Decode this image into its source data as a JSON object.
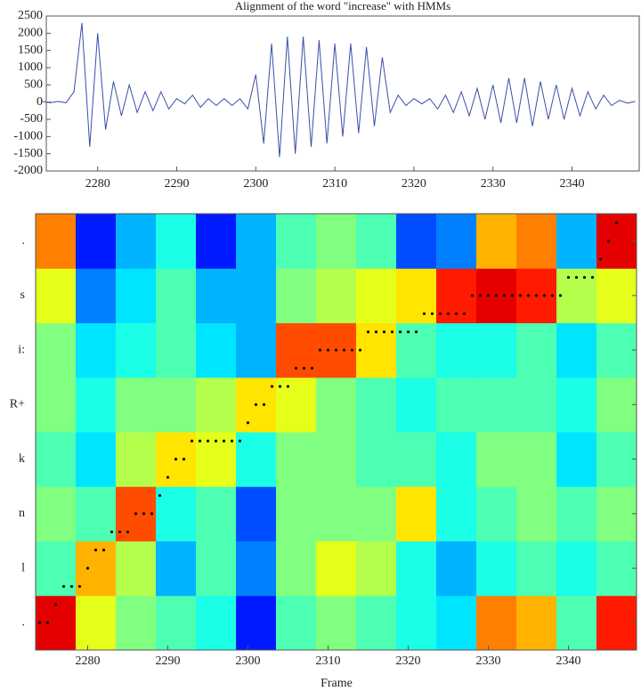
{
  "chart_data": [
    {
      "type": "line",
      "title": "Alignment of the word \"increase\" with HMMs",
      "color": "#3a4fa8",
      "x": [
        2273,
        2274,
        2275,
        2276,
        2277,
        2278,
        2279,
        2280,
        2281,
        2282,
        2283,
        2284,
        2285,
        2286,
        2287,
        2288,
        2289,
        2290,
        2291,
        2292,
        2293,
        2294,
        2295,
        2296,
        2297,
        2298,
        2299,
        2300,
        2301,
        2302,
        2303,
        2304,
        2305,
        2306,
        2307,
        2308,
        2309,
        2310,
        2311,
        2312,
        2313,
        2314,
        2315,
        2316,
        2317,
        2318,
        2319,
        2320,
        2321,
        2322,
        2323,
        2324,
        2325,
        2326,
        2327,
        2328,
        2329,
        2330,
        2331,
        2332,
        2333,
        2334,
        2335,
        2336,
        2337,
        2338,
        2339,
        2340,
        2341,
        2342,
        2343,
        2344,
        2345,
        2346,
        2347,
        2348
      ],
      "values": [
        20,
        -20,
        20,
        -20,
        300,
        2300,
        -1300,
        2000,
        -800,
        600,
        -400,
        500,
        -300,
        300,
        -250,
        300,
        -200,
        100,
        -50,
        200,
        -150,
        100,
        -100,
        100,
        -100,
        100,
        -200,
        800,
        -1200,
        1700,
        -1600,
        1900,
        -1500,
        1900,
        -1300,
        1800,
        -1200,
        1700,
        -1000,
        1700,
        -900,
        1600,
        -700,
        1300,
        -300,
        200,
        -100,
        100,
        -50,
        100,
        -200,
        200,
        -300,
        300,
        -400,
        400,
        -500,
        500,
        -600,
        700,
        -600,
        700,
        -700,
        600,
        -500,
        500,
        -500,
        400,
        -400,
        300,
        -200,
        200,
        -100,
        50,
        -30,
        20
      ],
      "xlim": [
        2273.5,
        2348.5
      ],
      "xticks": [
        2280,
        2290,
        2300,
        2310,
        2320,
        2330,
        2340
      ],
      "ylim": [
        -2000,
        2500
      ],
      "yticks": [
        -2000,
        -1500,
        -1000,
        -500,
        0,
        500,
        1000,
        1500,
        2000,
        2500
      ]
    },
    {
      "type": "heatmap",
      "x_label": "Frame",
      "xlim": [
        2273.5,
        2348.5
      ],
      "xticks": [
        2280,
        2290,
        2300,
        2310,
        2320,
        2330,
        2340
      ],
      "ylim": [
        0,
        24
      ],
      "yticks": [
        {
          "value": 1.5,
          "label": "."
        },
        {
          "value": 4.5,
          "label": "l"
        },
        {
          "value": 7.5,
          "label": "n"
        },
        {
          "value": 10.5,
          "label": "k"
        },
        {
          "value": 13.5,
          "label": "R+"
        },
        {
          "value": 16.5,
          "label": "i:"
        },
        {
          "value": 19.5,
          "label": "s"
        },
        {
          "value": 22.5,
          "label": "."
        }
      ],
      "matrix": [
        [
          0.9,
          0.6,
          0.5,
          0.45,
          0.4,
          0.15,
          0.45,
          0.5,
          0.45,
          0.4,
          0.35,
          0.75,
          0.7,
          0.45,
          0.85
        ],
        [
          0.45,
          0.7,
          0.55,
          0.3,
          0.45,
          0.25,
          0.5,
          0.6,
          0.55,
          0.4,
          0.3,
          0.4,
          0.45,
          0.4,
          0.45
        ],
        [
          0.5,
          0.45,
          0.8,
          0.4,
          0.45,
          0.2,
          0.5,
          0.5,
          0.5,
          0.65,
          0.4,
          0.45,
          0.5,
          0.45,
          0.5
        ],
        [
          0.45,
          0.35,
          0.55,
          0.65,
          0.6,
          0.4,
          0.5,
          0.5,
          0.45,
          0.45,
          0.4,
          0.5,
          0.5,
          0.35,
          0.45
        ],
        [
          0.5,
          0.4,
          0.5,
          0.5,
          0.55,
          0.65,
          0.6,
          0.5,
          0.45,
          0.4,
          0.45,
          0.45,
          0.45,
          0.4,
          0.5
        ],
        [
          0.5,
          0.35,
          0.4,
          0.45,
          0.35,
          0.3,
          0.8,
          0.8,
          0.65,
          0.45,
          0.4,
          0.4,
          0.45,
          0.35,
          0.45
        ],
        [
          0.6,
          0.25,
          0.35,
          0.45,
          0.3,
          0.3,
          0.5,
          0.55,
          0.6,
          0.65,
          0.85,
          0.9,
          0.85,
          0.55,
          0.6
        ],
        [
          0.75,
          0.15,
          0.3,
          0.4,
          0.15,
          0.3,
          0.45,
          0.5,
          0.45,
          0.2,
          0.25,
          0.7,
          0.75,
          0.3,
          0.9
        ]
      ],
      "path": {
        "x": [
          2274,
          2275,
          2276,
          2277,
          2278,
          2279,
          2280,
          2281,
          2282,
          2283,
          2284,
          2285,
          2286,
          2287,
          2288,
          2289,
          2290,
          2291,
          2292,
          2293,
          2294,
          2295,
          2296,
          2297,
          2298,
          2299,
          2300,
          2301,
          2302,
          2303,
          2304,
          2305,
          2306,
          2307,
          2308,
          2309,
          2310,
          2311,
          2312,
          2313,
          2314,
          2315,
          2316,
          2317,
          2318,
          2319,
          2320,
          2321,
          2322,
          2323,
          2324,
          2325,
          2326,
          2327,
          2328,
          2329,
          2330,
          2331,
          2332,
          2333,
          2334,
          2335,
          2336,
          2337,
          2338,
          2339,
          2340,
          2341,
          2342,
          2343,
          2344,
          2345,
          2346
        ],
        "y": [
          1,
          1,
          2,
          3,
          3,
          3,
          4,
          5,
          5,
          6,
          6,
          6,
          7,
          7,
          7,
          8,
          9,
          10,
          10,
          11,
          11,
          11,
          11,
          11,
          11,
          11,
          12,
          13,
          13,
          14,
          14,
          14,
          15,
          15,
          15,
          16,
          16,
          16,
          16,
          16,
          16,
          17,
          17,
          17,
          17,
          17,
          17,
          17,
          18,
          18,
          18,
          18,
          18,
          18,
          19,
          19,
          19,
          19,
          19,
          19,
          19,
          19,
          19,
          19,
          19,
          19,
          20,
          20,
          20,
          20,
          21,
          22,
          23
        ]
      }
    }
  ]
}
